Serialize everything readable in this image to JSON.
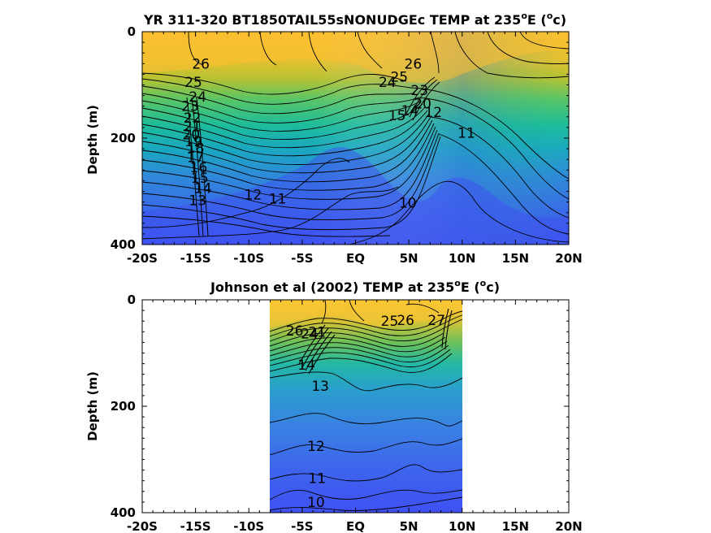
{
  "chart_data": [
    {
      "type": "contour",
      "title_main": "YR 311-320 BT1850TAIL55sNONUDGEc TEMP at 235",
      "title_sup": "o",
      "title_mid": "E (",
      "title_sup2": "o",
      "title_end": "c)",
      "ylabel": "Depth (m)",
      "xlim": [
        -20,
        20
      ],
      "ylim": [
        0,
        400
      ],
      "y_reversed": true,
      "x_ticks": [
        -20,
        -15,
        -10,
        -5,
        0,
        5,
        10,
        15,
        20
      ],
      "x_tick_labels": [
        "-20S",
        "-15S",
        "-10S",
        "-5S",
        "EQ",
        "5N",
        "10N",
        "15N",
        "20N"
      ],
      "y_ticks": [
        0,
        200,
        400
      ],
      "y_tick_labels": [
        "0",
        "200",
        "400"
      ],
      "data_extent_x": [
        -20,
        20
      ],
      "contour_levels": [
        10,
        11,
        12,
        13,
        14,
        15,
        16,
        17,
        18,
        19,
        20,
        21,
        22,
        23,
        24,
        25,
        26,
        27
      ],
      "contour_labels": [
        {
          "text": "26",
          "x": -14.5,
          "y": 60
        },
        {
          "text": "25",
          "x": -15.2,
          "y": 95
        },
        {
          "text": "24",
          "x": -14.8,
          "y": 122
        },
        {
          "text": "23",
          "x": -15.5,
          "y": 140
        },
        {
          "text": "22",
          "x": -15.3,
          "y": 162
        },
        {
          "text": "21",
          "x": -15.3,
          "y": 178
        },
        {
          "text": "20",
          "x": -15.4,
          "y": 193
        },
        {
          "text": "19",
          "x": -15.2,
          "y": 206
        },
        {
          "text": "18",
          "x": -15.0,
          "y": 218
        },
        {
          "text": "17",
          "x": -15.0,
          "y": 236
        },
        {
          "text": "16",
          "x": -14.7,
          "y": 255
        },
        {
          "text": "15",
          "x": -14.6,
          "y": 275
        },
        {
          "text": "14",
          "x": -14.3,
          "y": 294
        },
        {
          "text": "13",
          "x": -14.8,
          "y": 317
        },
        {
          "text": "12",
          "x": -9.6,
          "y": 306
        },
        {
          "text": "11",
          "x": -7.3,
          "y": 314
        },
        {
          "text": "10",
          "x": 4.9,
          "y": 321
        },
        {
          "text": "11",
          "x": 10.4,
          "y": 190
        },
        {
          "text": "12",
          "x": 7.3,
          "y": 151
        },
        {
          "text": "15",
          "x": 3.9,
          "y": 157
        },
        {
          "text": "14",
          "x": 5.1,
          "y": 148
        },
        {
          "text": "24",
          "x": 3.0,
          "y": 95
        },
        {
          "text": "25",
          "x": 4.1,
          "y": 85
        },
        {
          "text": "26",
          "x": 5.4,
          "y": 60
        },
        {
          "text": "23",
          "x": 6.0,
          "y": 110
        },
        {
          "text": "20",
          "x": 6.3,
          "y": 135
        }
      ]
    },
    {
      "type": "contour",
      "title_main": "Johnson et al (2002) TEMP at 235",
      "title_sup": "o",
      "title_mid": "E (",
      "title_sup2": "o",
      "title_end": "c)",
      "ylabel": "Depth (m)",
      "xlim": [
        -20,
        20
      ],
      "ylim": [
        0,
        400
      ],
      "y_reversed": true,
      "x_ticks": [
        -20,
        -15,
        -10,
        -5,
        0,
        5,
        10,
        15,
        20
      ],
      "x_tick_labels": [
        "-20S",
        "-15S",
        "-10S",
        "-5S",
        "EQ",
        "5N",
        "10N",
        "15N",
        "20N"
      ],
      "y_ticks": [
        0,
        200,
        400
      ],
      "y_tick_labels": [
        "0",
        "200",
        "400"
      ],
      "data_extent_x": [
        -8,
        10
      ],
      "contour_levels": [
        10,
        11,
        12,
        13,
        14,
        15,
        16,
        17,
        18,
        19,
        20,
        21,
        22,
        23,
        24,
        25,
        26,
        27
      ],
      "contour_labels": [
        {
          "text": "26",
          "x": -5.7,
          "y": 58
        },
        {
          "text": "24",
          "x": -4.3,
          "y": 63
        },
        {
          "text": "21",
          "x": -3.6,
          "y": 60
        },
        {
          "text": "14",
          "x": -4.6,
          "y": 122
        },
        {
          "text": "13",
          "x": -3.3,
          "y": 162
        },
        {
          "text": "25",
          "x": 3.2,
          "y": 40
        },
        {
          "text": "26",
          "x": 4.7,
          "y": 38
        },
        {
          "text": "27",
          "x": 7.6,
          "y": 38
        },
        {
          "text": "12",
          "x": -3.7,
          "y": 275
        },
        {
          "text": "11",
          "x": -3.6,
          "y": 335
        },
        {
          "text": "10",
          "x": -3.7,
          "y": 380
        }
      ]
    }
  ]
}
